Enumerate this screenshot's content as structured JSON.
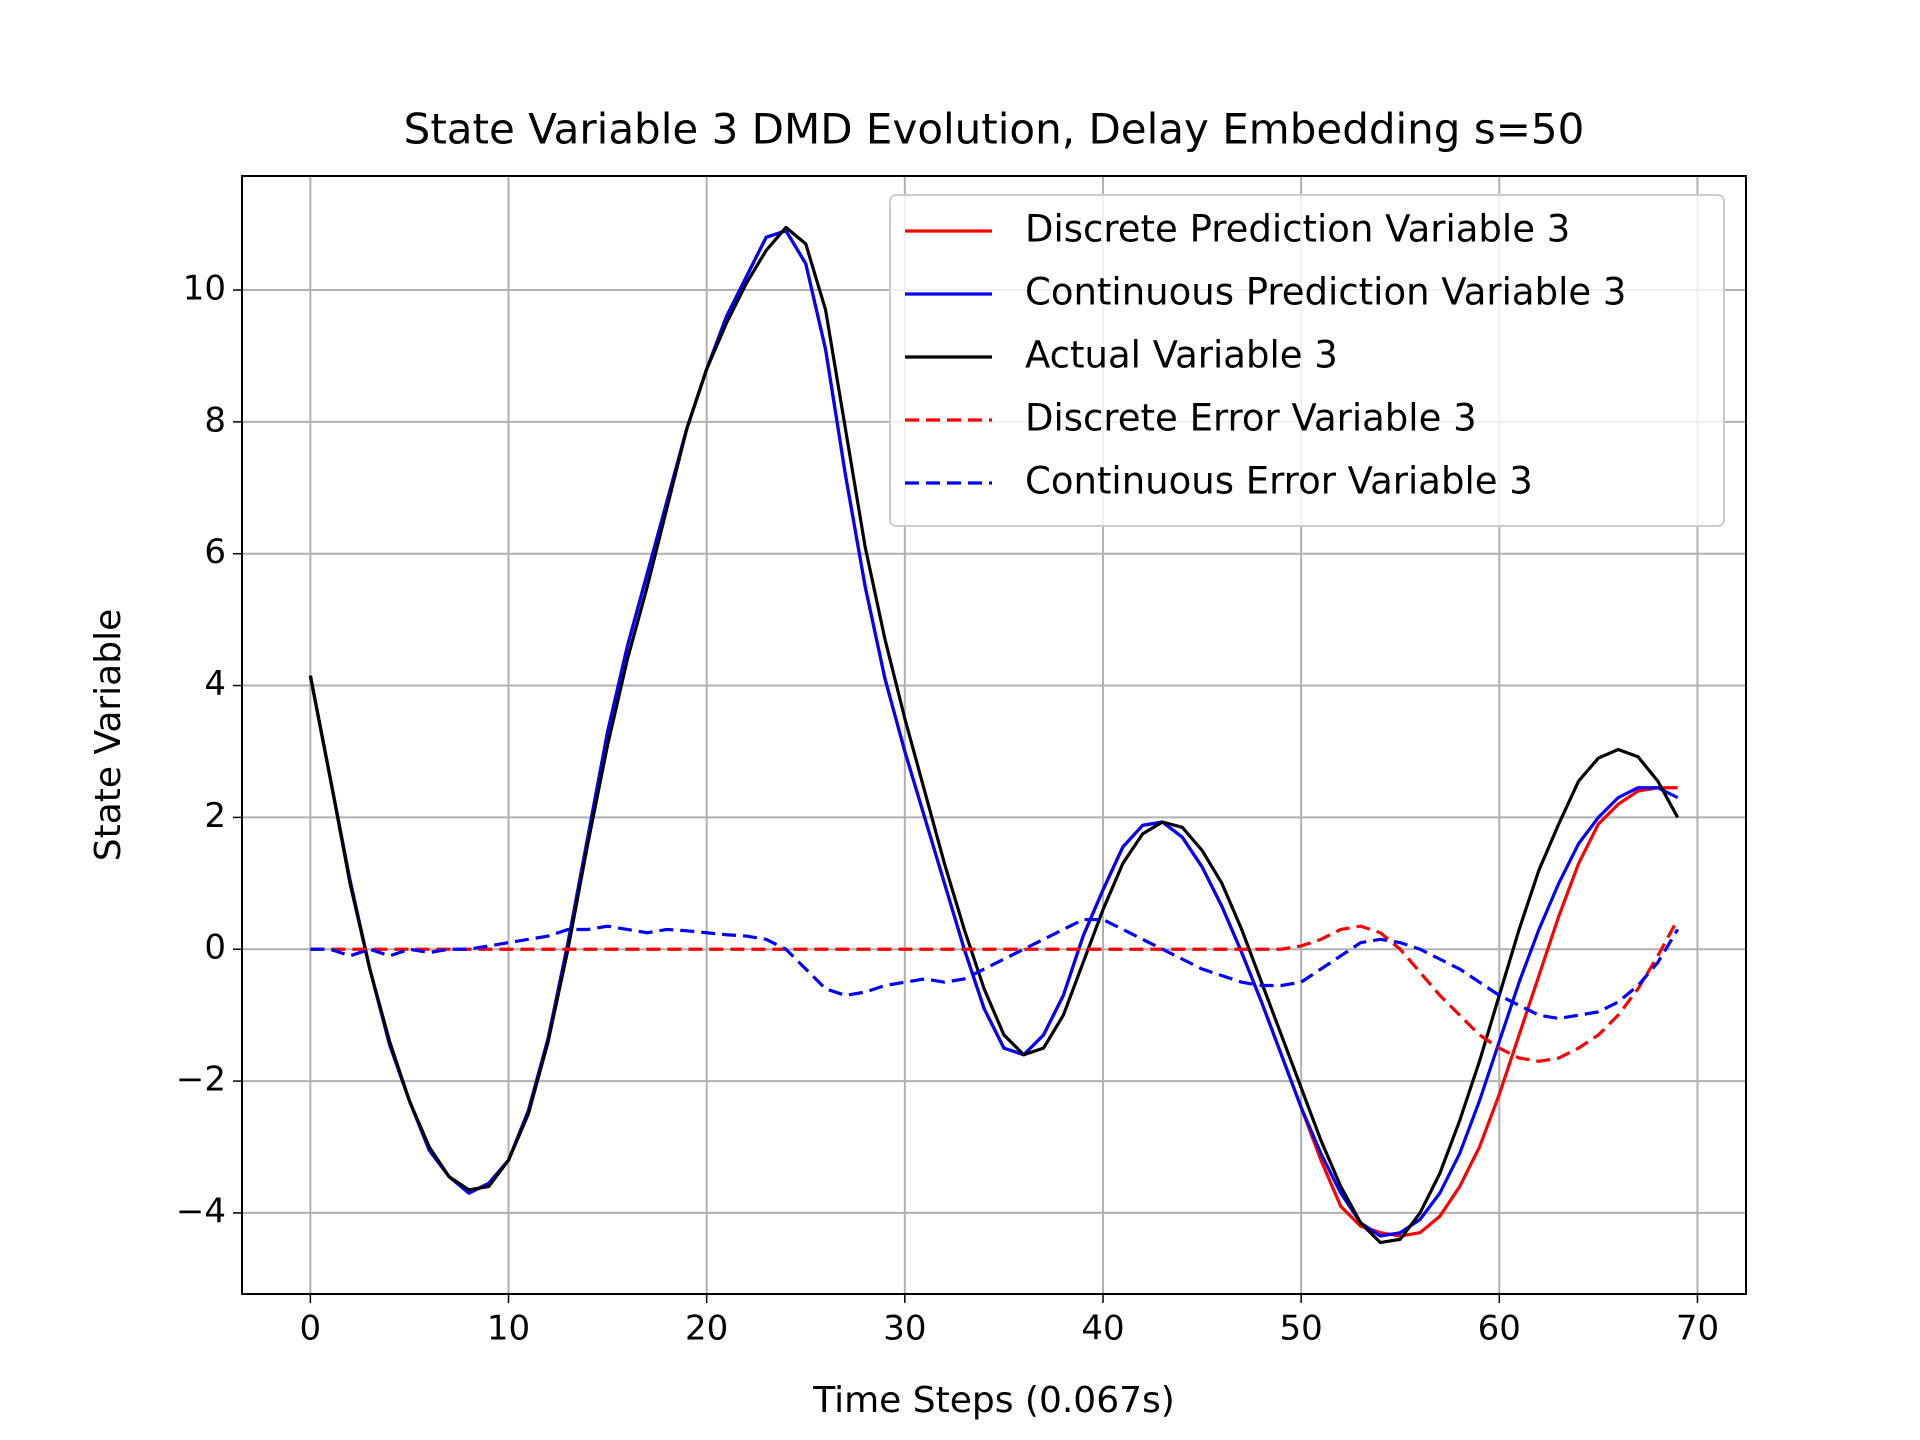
{
  "chart_data": {
    "type": "line",
    "title": "State Variable 3 DMD Evolution, Delay Embedding s=50",
    "x_label": "Time Steps (0.067s)",
    "y_label": "State Variable",
    "x": [
      0,
      1,
      2,
      3,
      4,
      5,
      6,
      7,
      8,
      9,
      10,
      11,
      12,
      13,
      14,
      15,
      16,
      17,
      18,
      19,
      20,
      21,
      22,
      23,
      24,
      25,
      26,
      27,
      28,
      29,
      30,
      31,
      32,
      33,
      34,
      35,
      36,
      37,
      38,
      39,
      40,
      41,
      42,
      43,
      44,
      45,
      46,
      47,
      48,
      49,
      50,
      51,
      52,
      53,
      54,
      55,
      56,
      57,
      58,
      59,
      60,
      61,
      62,
      63,
      64,
      65,
      66,
      67,
      68,
      69
    ],
    "xlim": [
      -3.45,
      72.45
    ],
    "ylim": [
      -5.23,
      11.73
    ],
    "xticks": [
      0,
      10,
      20,
      30,
      40,
      50,
      60,
      70
    ],
    "yticks": [
      {
        "value": -4,
        "label": "−4"
      },
      {
        "value": -2,
        "label": "−2"
      },
      0,
      2,
      4,
      6,
      8,
      10
    ],
    "grid": true,
    "legend": "upper right",
    "series": [
      {
        "name": "Discrete Prediction Variable 3",
        "color": "#ff0000",
        "dash": "solid",
        "values": [
          4.15,
          2.6,
          1.05,
          -0.3,
          -1.45,
          -2.3,
          -3.05,
          -3.45,
          -3.7,
          -3.55,
          -3.2,
          -2.45,
          -1.35,
          0.1,
          1.7,
          3.3,
          4.6,
          5.7,
          6.8,
          7.9,
          8.8,
          9.6,
          10.2,
          10.8,
          10.9,
          10.4,
          9.1,
          7.2,
          5.5,
          4.1,
          3.0,
          2.0,
          1.0,
          0.0,
          -0.9,
          -1.5,
          -1.6,
          -1.3,
          -0.7,
          0.2,
          0.9,
          1.55,
          1.88,
          1.93,
          1.7,
          1.25,
          0.65,
          -0.05,
          -0.8,
          -1.6,
          -2.4,
          -3.2,
          -3.9,
          -4.2,
          -4.3,
          -4.35,
          -4.3,
          -4.05,
          -3.6,
          -3.0,
          -2.2,
          -1.3,
          -0.4,
          0.5,
          1.3,
          1.9,
          2.2,
          2.4,
          2.45,
          2.45
        ]
      },
      {
        "name": "Continuous Prediction Variable 3",
        "color": "#0000ff",
        "dash": "solid",
        "values": [
          4.15,
          2.6,
          1.05,
          -0.3,
          -1.45,
          -2.3,
          -3.05,
          -3.45,
          -3.7,
          -3.55,
          -3.2,
          -2.45,
          -1.35,
          0.1,
          1.7,
          3.3,
          4.6,
          5.7,
          6.8,
          7.9,
          8.8,
          9.6,
          10.2,
          10.8,
          10.9,
          10.4,
          9.1,
          7.2,
          5.5,
          4.1,
          3.0,
          2.0,
          1.0,
          0.0,
          -0.9,
          -1.5,
          -1.6,
          -1.3,
          -0.7,
          0.2,
          0.9,
          1.55,
          1.88,
          1.93,
          1.7,
          1.25,
          0.65,
          -0.05,
          -0.8,
          -1.6,
          -2.4,
          -3.1,
          -3.7,
          -4.15,
          -4.35,
          -4.3,
          -4.1,
          -3.7,
          -3.1,
          -2.3,
          -1.4,
          -0.5,
          0.3,
          1.0,
          1.6,
          2.0,
          2.3,
          2.45,
          2.45,
          2.3
        ]
      },
      {
        "name": "Actual Variable 3",
        "color": "#000000",
        "dash": "solid",
        "values": [
          4.15,
          2.6,
          1.0,
          -0.3,
          -1.4,
          -2.3,
          -3.0,
          -3.45,
          -3.65,
          -3.6,
          -3.2,
          -2.5,
          -1.4,
          0.0,
          1.6,
          3.1,
          4.4,
          5.5,
          6.7,
          7.9,
          8.8,
          9.5,
          10.1,
          10.6,
          10.95,
          10.7,
          9.7,
          7.9,
          6.1,
          4.7,
          3.5,
          2.4,
          1.3,
          0.3,
          -0.6,
          -1.3,
          -1.6,
          -1.5,
          -1.0,
          -0.2,
          0.6,
          1.3,
          1.75,
          1.93,
          1.85,
          1.5,
          1.0,
          0.3,
          -0.5,
          -1.3,
          -2.1,
          -2.9,
          -3.6,
          -4.15,
          -4.45,
          -4.4,
          -4.0,
          -3.4,
          -2.6,
          -1.7,
          -0.7,
          0.3,
          1.2,
          1.9,
          2.55,
          2.9,
          3.03,
          2.92,
          2.55,
          2.0
        ]
      },
      {
        "name": "Discrete Error Variable 3",
        "color": "#ff0000",
        "dash": "dashed",
        "values": [
          0,
          0,
          0,
          0,
          0,
          0,
          0,
          0,
          0,
          0,
          0,
          0,
          0,
          0,
          0,
          0,
          0,
          0,
          0,
          0,
          0,
          0,
          0,
          0,
          0,
          0,
          0,
          0,
          0,
          0,
          0,
          0,
          0,
          0,
          0,
          0,
          0,
          0,
          0,
          0,
          0,
          0,
          0,
          0,
          0,
          0,
          0,
          0,
          0,
          0,
          0.05,
          0.15,
          0.3,
          0.35,
          0.25,
          0.0,
          -0.35,
          -0.7,
          -1.0,
          -1.3,
          -1.5,
          -1.65,
          -1.7,
          -1.65,
          -1.5,
          -1.3,
          -1.0,
          -0.6,
          -0.1,
          0.45
        ]
      },
      {
        "name": "Continuous Error Variable 3",
        "color": "#0000ff",
        "dash": "dashed",
        "values": [
          0,
          0,
          -0.1,
          0,
          -0.1,
          0,
          -0.05,
          0,
          0,
          0.05,
          0.1,
          0.15,
          0.2,
          0.3,
          0.3,
          0.35,
          0.3,
          0.25,
          0.3,
          0.28,
          0.25,
          0.22,
          0.2,
          0.15,
          0,
          -0.3,
          -0.6,
          -0.7,
          -0.65,
          -0.55,
          -0.5,
          -0.45,
          -0.5,
          -0.45,
          -0.3,
          -0.15,
          0,
          0.15,
          0.3,
          0.45,
          0.45,
          0.3,
          0.15,
          0,
          -0.15,
          -0.3,
          -0.4,
          -0.5,
          -0.55,
          -0.55,
          -0.5,
          -0.3,
          -0.1,
          0.1,
          0.15,
          0.1,
          0,
          -0.15,
          -0.3,
          -0.5,
          -0.7,
          -0.85,
          -1.0,
          -1.05,
          -1.0,
          -0.95,
          -0.8,
          -0.55,
          -0.2,
          0.3
        ]
      }
    ]
  }
}
